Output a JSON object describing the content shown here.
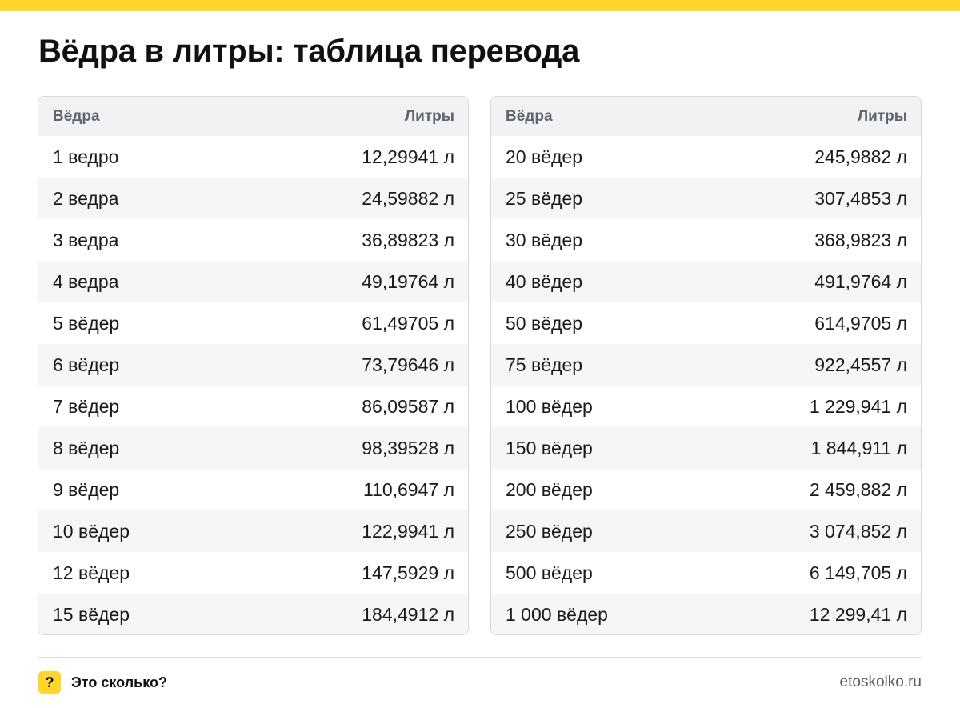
{
  "title": "Вёдра в литры: таблица перевода",
  "tables": [
    {
      "header": {
        "unit": "Вёдра",
        "result": "Литры"
      },
      "rows": [
        {
          "amount": "1 ведро",
          "liters": "12,29941 л"
        },
        {
          "amount": "2 ведра",
          "liters": "24,59882 л"
        },
        {
          "amount": "3 ведра",
          "liters": "36,89823 л"
        },
        {
          "amount": "4 ведра",
          "liters": "49,19764 л"
        },
        {
          "amount": "5 вёдер",
          "liters": "61,49705 л"
        },
        {
          "amount": "6 вёдер",
          "liters": "73,79646 л"
        },
        {
          "amount": "7 вёдер",
          "liters": "86,09587 л"
        },
        {
          "amount": "8 вёдер",
          "liters": "98,39528 л"
        },
        {
          "amount": "9 вёдер",
          "liters": "110,6947 л"
        },
        {
          "amount": "10 вёдер",
          "liters": "122,9941 л"
        },
        {
          "amount": "12 вёдер",
          "liters": "147,5929 л"
        },
        {
          "amount": "15 вёдер",
          "liters": "184,4912 л"
        }
      ]
    },
    {
      "header": {
        "unit": "Вёдра",
        "result": "Литры"
      },
      "rows": [
        {
          "amount": "20 вёдер",
          "liters": "245,9882 л"
        },
        {
          "amount": "25 вёдер",
          "liters": "307,4853 л"
        },
        {
          "amount": "30 вёдер",
          "liters": "368,9823 л"
        },
        {
          "amount": "40 вёдер",
          "liters": "491,9764 л"
        },
        {
          "amount": "50 вёдер",
          "liters": "614,9705 л"
        },
        {
          "amount": "75 вёдер",
          "liters": "922,4557 л"
        },
        {
          "amount": "100 вёдер",
          "liters": "1 229,941 л"
        },
        {
          "amount": "150 вёдер",
          "liters": "1 844,911 л"
        },
        {
          "amount": "200 вёдер",
          "liters": "2 459,882 л"
        },
        {
          "amount": "250 вёдер",
          "liters": "3 074,852 л"
        },
        {
          "amount": "500 вёдер",
          "liters": "6 149,705 л"
        },
        {
          "amount": "1 000 вёдер",
          "liters": "12 299,41 л"
        }
      ]
    }
  ],
  "footer": {
    "badge": "?",
    "brand": "Это сколько?",
    "site": "etoskolko.ru"
  },
  "colors": {
    "accent": "#ffd52e",
    "header_bg": "#f1f2f4",
    "stripe_bg": "#f5f6f7"
  }
}
